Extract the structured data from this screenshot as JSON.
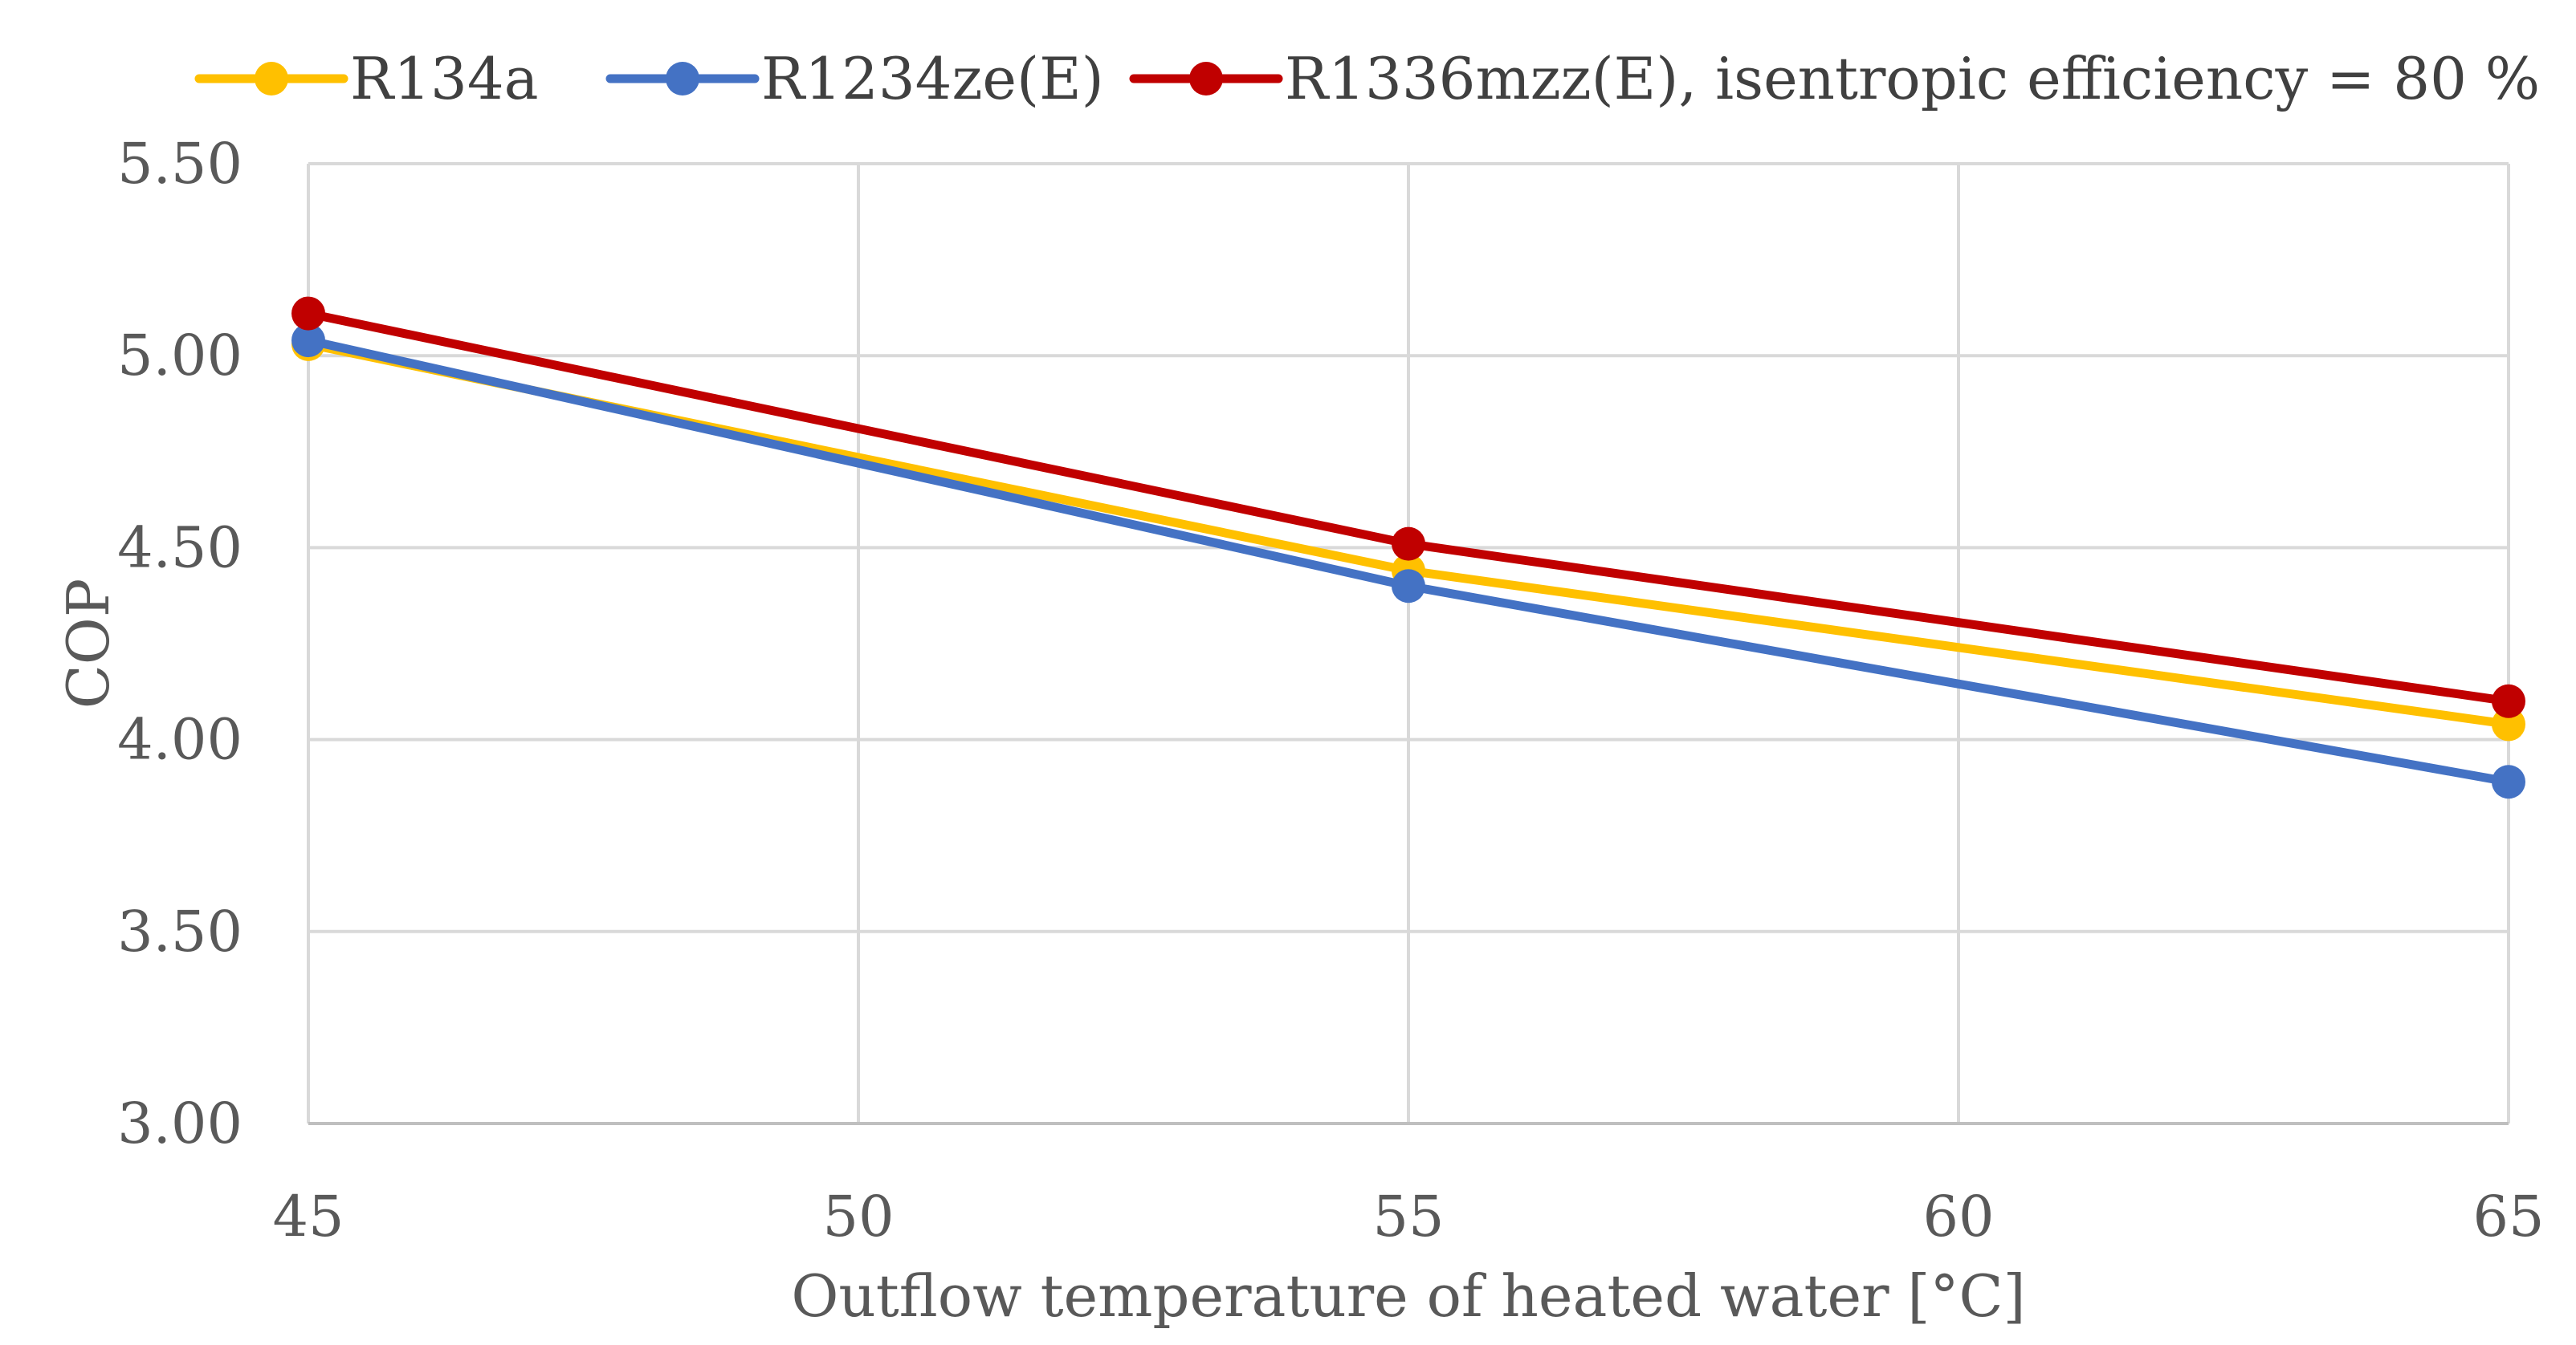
{
  "chart_data": {
    "type": "line",
    "title": "",
    "xlabel": "Outflow temperature of heated water [°C]",
    "ylabel": "COP",
    "x": [
      45,
      55,
      65
    ],
    "xlim": [
      45,
      65
    ],
    "ylim": [
      3.0,
      5.5
    ],
    "xticks": [
      45,
      50,
      55,
      60,
      65
    ],
    "xtick_labels": [
      "45",
      "50",
      "55",
      "60",
      "65"
    ],
    "yticks": [
      3.0,
      3.5,
      4.0,
      4.5,
      5.0,
      5.5
    ],
    "ytick_labels": [
      "3.00",
      "3.50",
      "4.00",
      "4.50",
      "5.00",
      "5.50"
    ],
    "grid": true,
    "legend_position": "top",
    "series": [
      {
        "name": "R134a",
        "color": "#FFC000",
        "values": [
          5.03,
          4.44,
          4.04
        ]
      },
      {
        "name": "R1234ze(E)",
        "color": "#4472C4",
        "values": [
          5.04,
          4.4,
          3.89
        ]
      },
      {
        "name": "R1336mzz(E), isentropic efficiency = 80 %",
        "color": "#C00000",
        "values": [
          5.11,
          4.51,
          4.1
        ]
      }
    ]
  }
}
